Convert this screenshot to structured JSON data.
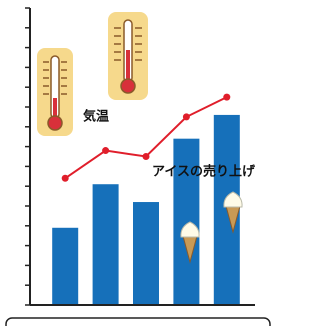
{
  "chart_data": {
    "type": "bar",
    "categories": [
      null,
      null,
      null,
      null,
      null
    ],
    "ylim": [
      0,
      15
    ],
    "yticks": [
      0,
      1,
      2,
      3,
      4,
      5,
      6,
      7,
      8,
      9,
      10,
      11,
      12,
      13,
      14,
      15
    ],
    "series": [
      {
        "name": "アイスの売り上げ",
        "type": "bar",
        "color": "#1670ba",
        "values": [
          3.9,
          6.1,
          5.2,
          8.4,
          9.6
        ]
      },
      {
        "name": "気温",
        "type": "line",
        "color": "#e01e2b",
        "values": [
          6.4,
          7.8,
          7.5,
          9.5,
          10.5
        ]
      }
    ]
  }
}
